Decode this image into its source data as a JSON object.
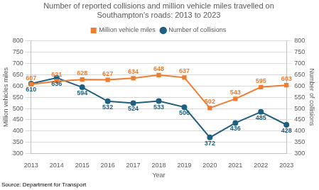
{
  "chart_data": {
    "type": "line",
    "title": [
      "Number of reported collisions and million vehicle miles travelled on",
      "Southampton's roads: 2013 to 2023"
    ],
    "source": "Source: Department for Transport",
    "x_label": "Year",
    "y_label": "Million vehicles miles",
    "y2_label": "Number of collisions",
    "categories": [
      "2013",
      "2014",
      "2015",
      "2016",
      "2017",
      "2018",
      "2019",
      "2020",
      "2021",
      "2022",
      "2023"
    ],
    "series": [
      {
        "name": "Million vehicle miles",
        "color": "#ed7d31",
        "marker": "square",
        "values": [
          607,
          621,
          628,
          627,
          634,
          648,
          637,
          502,
          543,
          595,
          603
        ]
      },
      {
        "name": "Number of collisions",
        "color": "#1f5f7f",
        "marker": "circle",
        "axis": "y2",
        "values": [
          610,
          636,
          594,
          532,
          524,
          533,
          506,
          372,
          436,
          485,
          428
        ]
      }
    ],
    "ylim": [
      300,
      800
    ],
    "yticks": [
      300,
      350,
      400,
      450,
      500,
      550,
      600,
      650,
      700,
      750,
      800
    ],
    "y2lim": [
      300,
      800
    ],
    "y2ticks": [
      300,
      350,
      400,
      450,
      500,
      550,
      600,
      650,
      700,
      750,
      800
    ],
    "grid": true,
    "legend": "top",
    "data_labels": true
  }
}
